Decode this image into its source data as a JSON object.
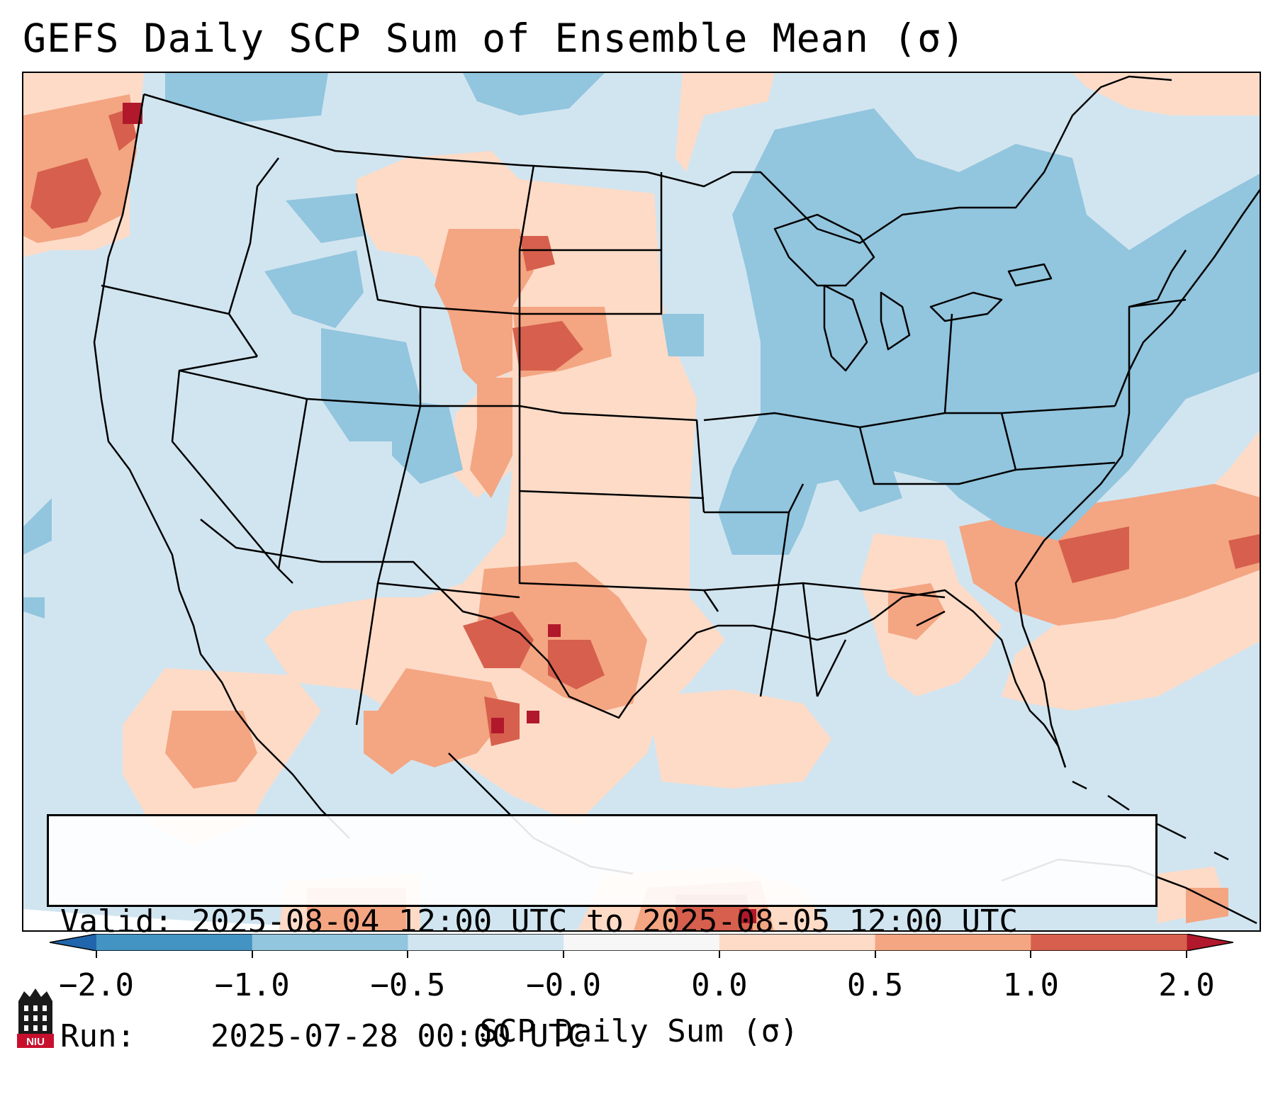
{
  "title": "GEFS Daily SCP Sum of Ensemble Mean (σ)",
  "info": {
    "valid_label": "Valid:",
    "valid_value": "2025-08-04 12:00 UTC to 2025-08-05 12:00 UTC",
    "run_label": "Run:",
    "run_value": "2025-07-28 00:00 UTC"
  },
  "colorbar": {
    "label": "SCP Daily Sum (σ)",
    "ticks": [
      "−2.0",
      "−1.0",
      "−0.5",
      "−0.0",
      "0.0",
      "0.5",
      "1.0",
      "2.0"
    ],
    "colors": [
      "#4393c3",
      "#92c5de",
      "#d1e5f0",
      "#f7f7f7",
      "#fddbc7",
      "#f4a582",
      "#d6604d",
      "#b2182b"
    ],
    "under_color": "#2166ac",
    "over_color": "#b2182b"
  },
  "logo": {
    "text": "NIU",
    "icon": "niu-building-icon"
  }
}
